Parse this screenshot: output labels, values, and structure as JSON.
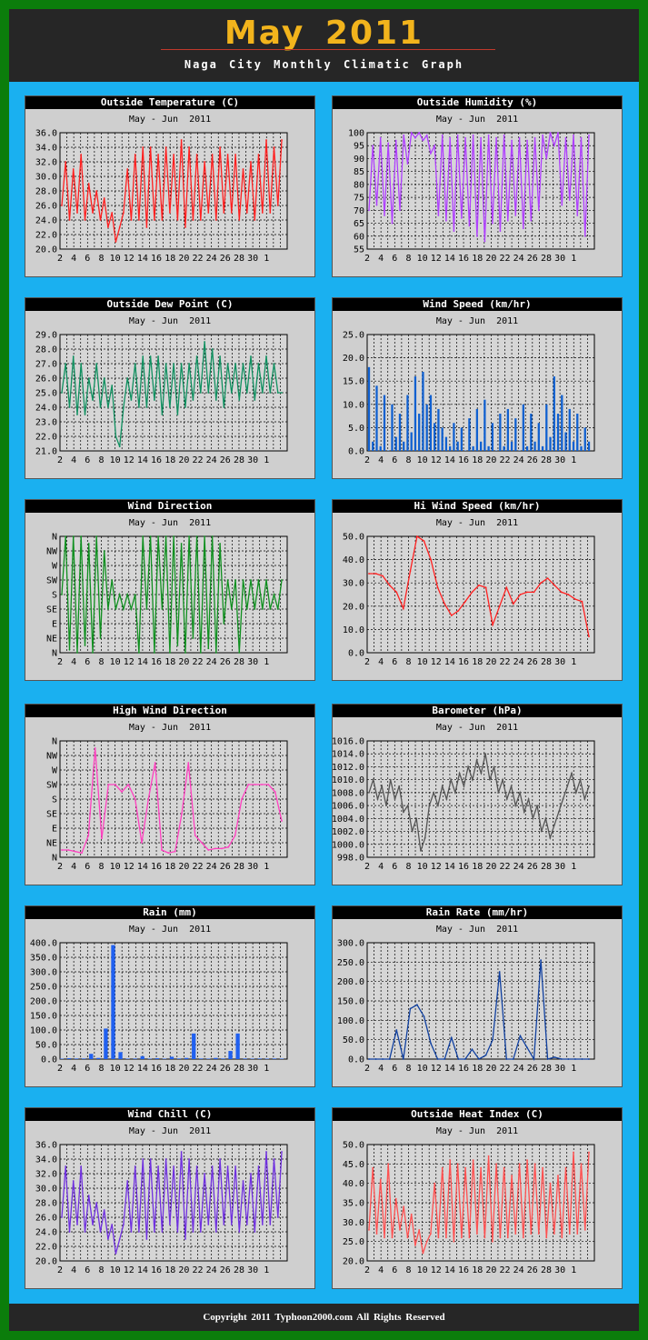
{
  "page": {
    "title": "May 2011",
    "subtitle": "Naga City Monthly Climatic Graph",
    "footer": "Copyright 2011     Typhoon2000.com     All Rights Reserved",
    "colors": {
      "background": "#0b7d0b",
      "frame": "#1ab0f0",
      "header": "#262626",
      "title": "#f2b41c",
      "panel": "#cfcfcf"
    }
  },
  "chart_data": [
    {
      "id": "outside-temperature",
      "type": "line",
      "title": "Outside Temperature (C)",
      "subtitle": "May - Jun  2011",
      "x_labels": [
        "2",
        "4",
        "6",
        "8",
        "10",
        "12",
        "14",
        "16",
        "18",
        "20",
        "22",
        "24",
        "26",
        "28",
        "30",
        "1"
      ],
      "ylim": [
        20,
        36
      ],
      "y_ticks": [
        "20.0",
        "22.0",
        "24.0",
        "26.0",
        "28.0",
        "30.0",
        "32.0",
        "34.0",
        "36.0"
      ],
      "grid": true,
      "color": "#ff2020",
      "series": [
        {
          "values": [
            26,
            32,
            24,
            31,
            25,
            33,
            24,
            29,
            25,
            28,
            24,
            27,
            23,
            25,
            21,
            23,
            25,
            31,
            24,
            33,
            24,
            34,
            23,
            34,
            24,
            33,
            24,
            34,
            25,
            33,
            24,
            35,
            23,
            34,
            24,
            33,
            24,
            32,
            25,
            33,
            24,
            34,
            25,
            33,
            25,
            33,
            24,
            31,
            25,
            32,
            24,
            33,
            25,
            35,
            25,
            34,
            26,
            35
          ]
        }
      ]
    },
    {
      "id": "outside-humidity",
      "type": "line",
      "title": "Outside Humidity (%)",
      "subtitle": "May - Jun  2011",
      "x_labels": [
        "2",
        "4",
        "6",
        "8",
        "10",
        "12",
        "14",
        "16",
        "18",
        "20",
        "22",
        "24",
        "26",
        "28",
        "30",
        "1"
      ],
      "ylim": [
        55,
        100
      ],
      "y_ticks": [
        "55",
        "60",
        "65",
        "70",
        "75",
        "80",
        "85",
        "90",
        "95",
        "100"
      ],
      "grid": true,
      "color": "#b040ff",
      "series": [
        {
          "values": [
            70,
            95,
            72,
            98,
            68,
            96,
            65,
            97,
            70,
            99,
            88,
            100,
            98,
            100,
            97,
            99,
            92,
            95,
            68,
            99,
            66,
            98,
            62,
            99,
            67,
            98,
            64,
            99,
            60,
            98,
            58,
            99,
            65,
            98,
            62,
            99,
            66,
            97,
            68,
            98,
            63,
            97,
            66,
            98,
            70,
            99,
            90,
            100,
            95,
            100,
            72,
            98,
            74,
            99,
            68,
            98,
            60,
            99
          ]
        }
      ]
    },
    {
      "id": "outside-dew-point",
      "type": "line",
      "title": "Outside Dew Point (C)",
      "subtitle": "May - Jun  2011",
      "x_labels": [
        "2",
        "4",
        "6",
        "8",
        "10",
        "12",
        "14",
        "16",
        "18",
        "20",
        "22",
        "24",
        "26",
        "28",
        "30",
        "1"
      ],
      "ylim": [
        21,
        29
      ],
      "y_ticks": [
        "21.0",
        "22.0",
        "23.0",
        "24.0",
        "25.0",
        "26.0",
        "27.0",
        "28.0",
        "29.0"
      ],
      "grid": true,
      "color": "#109060",
      "series": [
        {
          "values": [
            25,
            27,
            24,
            27.5,
            23.5,
            27,
            23.5,
            26,
            24.5,
            27,
            24,
            26,
            24,
            25.5,
            22,
            21.3,
            24,
            26,
            24.5,
            27,
            24,
            27.5,
            24,
            27.5,
            24.5,
            27.5,
            23.5,
            27,
            24,
            27,
            23.5,
            27,
            24,
            27,
            24.5,
            27.5,
            25,
            28.5,
            25,
            28,
            24.5,
            27.5,
            24,
            27,
            25,
            27,
            24.5,
            27,
            25,
            27.5,
            24.5,
            27,
            25,
            27.5,
            25,
            27,
            25,
            25
          ]
        }
      ]
    },
    {
      "id": "wind-speed",
      "type": "bar",
      "title": "Wind Speed (km/hr)",
      "subtitle": "May - Jun  2011",
      "x_labels": [
        "2",
        "4",
        "6",
        "8",
        "10",
        "12",
        "14",
        "16",
        "18",
        "20",
        "22",
        "24",
        "26",
        "28",
        "30",
        "1"
      ],
      "ylim": [
        0,
        25
      ],
      "y_ticks": [
        "0.0",
        "5.0",
        "10.0",
        "15.0",
        "20.0",
        "25.0"
      ],
      "grid": true,
      "color": "#1060d0",
      "series": [
        {
          "values": [
            18,
            2,
            14,
            1,
            12,
            0,
            10,
            3,
            8,
            2,
            12,
            4,
            16,
            8,
            17,
            10,
            12,
            6,
            9,
            5,
            3,
            1,
            6,
            2,
            5,
            0,
            7,
            1,
            9,
            2,
            11,
            1,
            6,
            0,
            8,
            1,
            9,
            2,
            7,
            0,
            10,
            1,
            8,
            2,
            6,
            1,
            10,
            3,
            16,
            8,
            12,
            4,
            9,
            2,
            8,
            1,
            5,
            2
          ]
        }
      ]
    },
    {
      "id": "wind-direction",
      "type": "line",
      "title": "Wind Direction",
      "subtitle": "May - Jun  2011",
      "x_labels": [
        "2",
        "4",
        "6",
        "8",
        "10",
        "12",
        "14",
        "16",
        "18",
        "20",
        "22",
        "24",
        "26",
        "28",
        "30",
        "1"
      ],
      "y_labels": [
        "N",
        "NE",
        "E",
        "SE",
        "S",
        "SW",
        "W",
        "NW",
        "N"
      ],
      "ylim": [
        0,
        8
      ],
      "grid": true,
      "color": "#109020",
      "series": [
        {
          "values": [
            4,
            8,
            0.2,
            8,
            0,
            8,
            0.5,
            7.5,
            0,
            8,
            1,
            7,
            3,
            5,
            3,
            4,
            3,
            4,
            3,
            4,
            0,
            8,
            3,
            8,
            0,
            8,
            3,
            8,
            0,
            8,
            0.5,
            7.5,
            0,
            8,
            1,
            8,
            0,
            8,
            0.3,
            8,
            0,
            7.5,
            2,
            5,
            3,
            5,
            0,
            5,
            3,
            5,
            3,
            5,
            3,
            5,
            3,
            4,
            3,
            5
          ]
        }
      ]
    },
    {
      "id": "hi-wind-speed",
      "type": "line",
      "title": "Hi Wind Speed (km/hr)",
      "subtitle": "May - Jun  2011",
      "x_labels": [
        "2",
        "4",
        "6",
        "8",
        "10",
        "12",
        "14",
        "16",
        "18",
        "20",
        "22",
        "24",
        "26",
        "28",
        "30",
        "1"
      ],
      "ylim": [
        0,
        50
      ],
      "y_ticks": [
        "0.0",
        "10.0",
        "20.0",
        "30.0",
        "40.0",
        "50.0"
      ],
      "grid": true,
      "color": "#ff2020",
      "series": [
        {
          "values": [
            34,
            34,
            33,
            29,
            26,
            19,
            35,
            50,
            48,
            40,
            28,
            21,
            16,
            18,
            22,
            26,
            29,
            28,
            12,
            20,
            28,
            21,
            25,
            26,
            26,
            30,
            32,
            29,
            26,
            25,
            23,
            22,
            7
          ]
        }
      ]
    },
    {
      "id": "high-wind-direction",
      "type": "line",
      "title": "High Wind Direction",
      "subtitle": "May - Jun  2011",
      "x_labels": [
        "2",
        "4",
        "6",
        "8",
        "10",
        "12",
        "14",
        "16",
        "18",
        "20",
        "22",
        "24",
        "26",
        "28",
        "30",
        "1"
      ],
      "y_labels": [
        "N",
        "NE",
        "E",
        "SE",
        "S",
        "SW",
        "W",
        "NW",
        "N"
      ],
      "ylim": [
        0,
        8
      ],
      "grid": true,
      "color": "#ff40c0",
      "series": [
        {
          "values": [
            0.5,
            0.5,
            0.4,
            0.3,
            1.5,
            7.5,
            1.3,
            5,
            5,
            4.5,
            5,
            4,
            1,
            4,
            6.5,
            0.5,
            0.3,
            0.4,
            3,
            6.5,
            1.5,
            1,
            0.5,
            0.6,
            0.6,
            0.7,
            1.5,
            4,
            5,
            5,
            5,
            5,
            4.5,
            2.5
          ]
        }
      ]
    },
    {
      "id": "barometer",
      "type": "line",
      "title": "Barometer (hPa)",
      "subtitle": "May - Jun  2011",
      "x_labels": [
        "2",
        "4",
        "6",
        "8",
        "10",
        "12",
        "14",
        "16",
        "18",
        "20",
        "22",
        "24",
        "26",
        "28",
        "30",
        "1"
      ],
      "ylim": [
        998,
        1016
      ],
      "y_ticks": [
        "998.0",
        "1000.0",
        "1002.0",
        "1004.0",
        "1006.0",
        "1008.0",
        "1010.0",
        "1012.0",
        "1014.0",
        "1016.0"
      ],
      "grid": true,
      "color": "#555555",
      "series": [
        {
          "values": [
            1008,
            1010,
            1007,
            1009,
            1006,
            1010,
            1007,
            1009,
            1005,
            1006,
            1002,
            1004,
            999,
            1001,
            1006,
            1008,
            1006,
            1009,
            1007,
            1010,
            1008,
            1011,
            1009,
            1012,
            1010,
            1013,
            1011,
            1014,
            1010,
            1012,
            1008,
            1010,
            1007,
            1009,
            1006,
            1008,
            1005,
            1007,
            1004,
            1006,
            1002,
            1004,
            1001,
            1003,
            1005,
            1007,
            1009,
            1011,
            1008,
            1010,
            1007,
            1009
          ]
        }
      ]
    },
    {
      "id": "rain",
      "type": "bar",
      "title": "Rain (mm)",
      "subtitle": "May - Jun  2011",
      "x_labels": [
        "2",
        "4",
        "6",
        "8",
        "10",
        "12",
        "14",
        "16",
        "18",
        "20",
        "22",
        "24",
        "26",
        "28",
        "30",
        "1"
      ],
      "ylim": [
        0,
        400
      ],
      "y_ticks": [
        "0.0",
        "50.0",
        "100.0",
        "150.0",
        "200.0",
        "250.0",
        "300.0",
        "350.0",
        "400.0"
      ],
      "grid": true,
      "color": "#2060f0",
      "series": [
        {
          "values": [
            0,
            3,
            2,
            2,
            18,
            4,
            105,
            392,
            24,
            0,
            2,
            10,
            0,
            3,
            0,
            8,
            2,
            4,
            88,
            2,
            0,
            4,
            2,
            28,
            88,
            2,
            0,
            2,
            0,
            2,
            0
          ]
        }
      ]
    },
    {
      "id": "rain-rate",
      "type": "line",
      "title": "Rain Rate (mm/hr)",
      "subtitle": "May - Jun  2011",
      "x_labels": [
        "2",
        "4",
        "6",
        "8",
        "10",
        "12",
        "14",
        "16",
        "18",
        "20",
        "22",
        "24",
        "26",
        "28",
        "30",
        "1"
      ],
      "ylim": [
        0,
        300
      ],
      "y_ticks": [
        "0.0",
        "50.0",
        "100.0",
        "150.0",
        "200.0",
        "250.0",
        "300.0"
      ],
      "grid": true,
      "color": "#1040a0",
      "series": [
        {
          "values": [
            0,
            0,
            0,
            0,
            75,
            0,
            130,
            140,
            110,
            40,
            0,
            0,
            55,
            0,
            0,
            25,
            0,
            10,
            50,
            225,
            0,
            0,
            60,
            30,
            0,
            255,
            0,
            5,
            0,
            0,
            0,
            0,
            0
          ]
        }
      ]
    },
    {
      "id": "wind-chill",
      "type": "line",
      "title": "Wind Chill (C)",
      "subtitle": "May - Jun  2011",
      "x_labels": [
        "2",
        "4",
        "6",
        "8",
        "10",
        "12",
        "14",
        "16",
        "18",
        "20",
        "22",
        "24",
        "26",
        "28",
        "30",
        "1"
      ],
      "ylim": [
        20,
        36
      ],
      "y_ticks": [
        "20.0",
        "22.0",
        "24.0",
        "26.0",
        "28.0",
        "30.0",
        "32.0",
        "34.0",
        "36.0"
      ],
      "grid": true,
      "color": "#7030e0",
      "series": [
        {
          "values": [
            26,
            33,
            24,
            31,
            25,
            33,
            24,
            29,
            25,
            28,
            24,
            27,
            23,
            25,
            21,
            23,
            25,
            31,
            24,
            33,
            24,
            34,
            23,
            34,
            24,
            33,
            24,
            34,
            25,
            33,
            24,
            35,
            23,
            34,
            24,
            33,
            24,
            32,
            25,
            33,
            24,
            34,
            25,
            33,
            25,
            33,
            24,
            31,
            25,
            32,
            24,
            33,
            25,
            35,
            25,
            34,
            26,
            35
          ]
        }
      ]
    },
    {
      "id": "outside-heat-index",
      "type": "line",
      "title": "Outside Heat Index (C)",
      "subtitle": "May - Jun  2011",
      "x_labels": [
        "2",
        "4",
        "6",
        "8",
        "10",
        "12",
        "14",
        "16",
        "18",
        "20",
        "22",
        "24",
        "26",
        "28",
        "30",
        "1"
      ],
      "ylim": [
        20,
        50
      ],
      "y_ticks": [
        "20.0",
        "25.0",
        "30.0",
        "35.0",
        "40.0",
        "45.0",
        "50.0"
      ],
      "grid": true,
      "color": "#ff5050",
      "series": [
        {
          "values": [
            28,
            44,
            27,
            41,
            26,
            45,
            26,
            36,
            28,
            34,
            26,
            32,
            24,
            28,
            22,
            25,
            27,
            40,
            26,
            44,
            26,
            46,
            25,
            45,
            26,
            44,
            26,
            46,
            27,
            44,
            26,
            47,
            25,
            45,
            26,
            44,
            26,
            42,
            27,
            45,
            26,
            46,
            27,
            45,
            27,
            44,
            26,
            40,
            27,
            42,
            26,
            44,
            27,
            48,
            27,
            45,
            28,
            48
          ]
        }
      ]
    }
  ]
}
